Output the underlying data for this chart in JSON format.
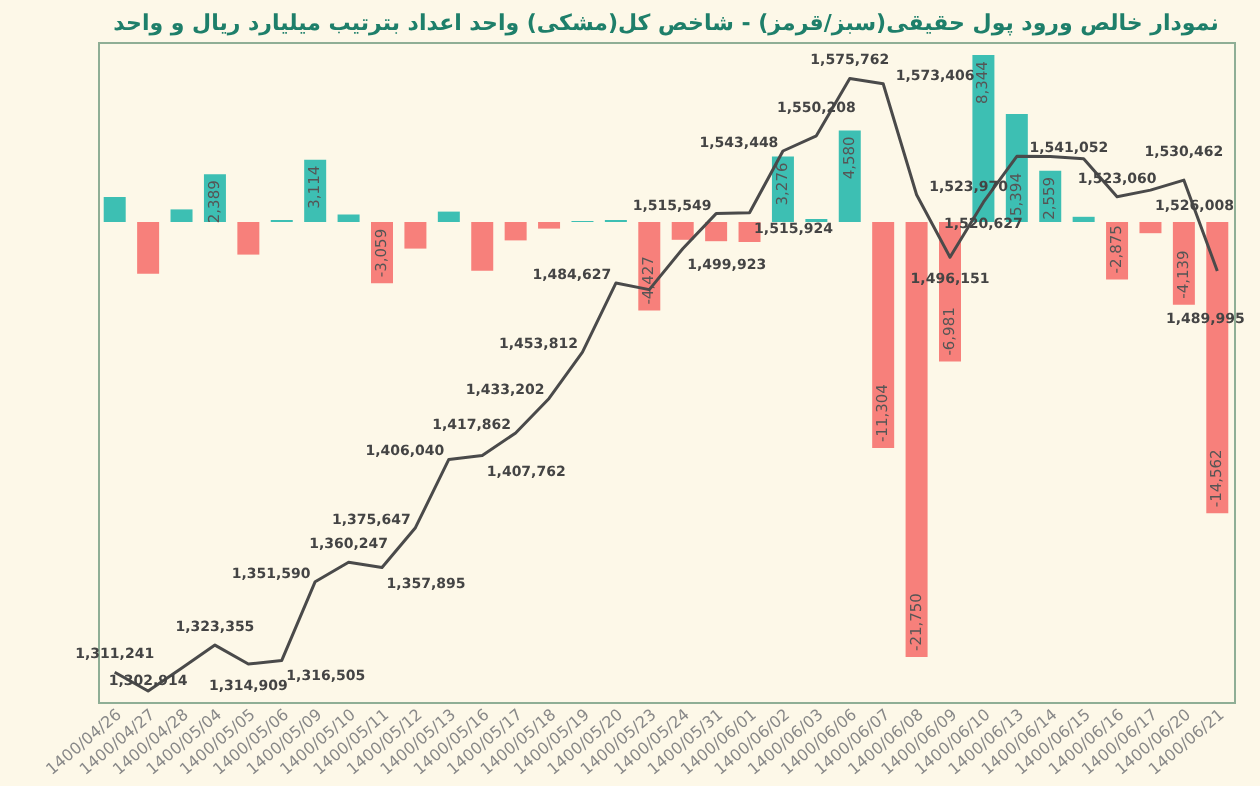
{
  "chart_data": {
    "type": "bar",
    "title": "نمودار خالص ورود پول حقیقی(سبز/قرمز) - شاخص کل(مشکی) واحد اعداد بترتیب میلیارد ریال و واحد",
    "categories": [
      "1400/04/26",
      "1400/04/27",
      "1400/04/28",
      "1400/05/04",
      "1400/05/05",
      "1400/05/06",
      "1400/05/09",
      "1400/05/10",
      "1400/05/11",
      "1400/05/12",
      "1400/05/13",
      "1400/05/16",
      "1400/05/17",
      "1400/05/18",
      "1400/05/19",
      "1400/05/20",
      "1400/05/23",
      "1400/05/24",
      "1400/05/31",
      "1400/06/01",
      "1400/06/02",
      "1400/06/03",
      "1400/06/06",
      "1400/06/07",
      "1400/06/08",
      "1400/06/09",
      "1400/06/10",
      "1400/06/13",
      "1400/06/14",
      "1400/06/15",
      "1400/06/16",
      "1400/06/17",
      "1400/06/20",
      "1400/06/21"
    ],
    "series": [
      {
        "colors": [
          "#3dbfb3",
          "#f7807b",
          "#3dbfb3",
          "#3dbfb3",
          "#f7807b",
          "#3dbfb3",
          "#3dbfb3",
          "#3dbfb3",
          "#f7807b",
          "#f7807b",
          "#3dbfb3",
          "#f7807b",
          "#f7807b",
          "#f7807b",
          "#3dbfb3",
          "#3dbfb3",
          "#f7807b",
          "#f7807b",
          "#f7807b",
          "#f7807b",
          "#3dbfb3",
          "#3dbfb3",
          "#3dbfb3",
          "#f7807b",
          "#f7807b",
          "#f7807b",
          "#3dbfb3",
          "#3dbfb3",
          "#3dbfb3",
          "#3dbfb3",
          "#f7807b",
          "#f7807b",
          "#f7807b",
          "#f7807b"
        ],
        "values": [
          1250,
          -2590,
          630,
          2389,
          -1630,
          100,
          3114,
          370,
          -3059,
          -1330,
          520,
          -2440,
          -920,
          -330,
          50,
          100,
          -4427,
          -890,
          -960,
          -1000,
          3276,
          150,
          4580,
          -11304,
          -21750,
          -6981,
          8344,
          5394,
          2559,
          260,
          -2875,
          -560,
          -4139,
          -14562
        ],
        "value_labels": [
          null,
          null,
          null,
          "2,389",
          null,
          null,
          "3,114",
          null,
          "-3,059",
          null,
          null,
          null,
          null,
          null,
          null,
          null,
          "-4,427",
          null,
          null,
          null,
          "3,276",
          null,
          "4,580",
          "-11,304",
          "-21,750",
          "-6,981",
          "8,344",
          "5,394",
          "2,559",
          null,
          "-2,875",
          null,
          "-4,139",
          "-14,562"
        ]
      },
      {
        "type": "line",
        "axis": "y2",
        "color": "#4a4a4a",
        "values": [
          1311241,
          1302914,
          1313000,
          1323355,
          1314909,
          1316505,
          1351590,
          1360247,
          1357895,
          1375647,
          1406040,
          1407762,
          1417862,
          1433202,
          1453812,
          1484627,
          1481700,
          1499923,
          1515549,
          1515924,
          1543448,
          1550208,
          1575762,
          1573406,
          1523970,
          1496151,
          1520627,
          1541052,
          1541000,
          1540000,
          1523060,
          1526008,
          1530462,
          1489995
        ],
        "value_labels": [
          "1,311,241",
          "1,302,914",
          null,
          "1,323,355",
          "1,314,909",
          "1,316,505",
          "1,351,590",
          "1,360,247",
          "1,357,895",
          "1,375,647",
          "1,406,040",
          "1,407,762",
          "1,417,862",
          "1,433,202",
          "1,453,812",
          "1,484,627",
          null,
          "1,499,923",
          "1,515,549",
          "1,515,924",
          "1,543,448",
          "1,550,208",
          "1,575,762",
          "1,573,406",
          "1,523,970",
          "1,496,151",
          "1,520,627",
          "1,541,052",
          null,
          null,
          "1,523,060",
          "1,526,008",
          "1,530,462",
          "1,489,995"
        ]
      }
    ],
    "ylim": [
      -24000,
      9000
    ],
    "y2lim": [
      1298000,
      1592000
    ],
    "tick_labels": "x",
    "grid": false
  }
}
